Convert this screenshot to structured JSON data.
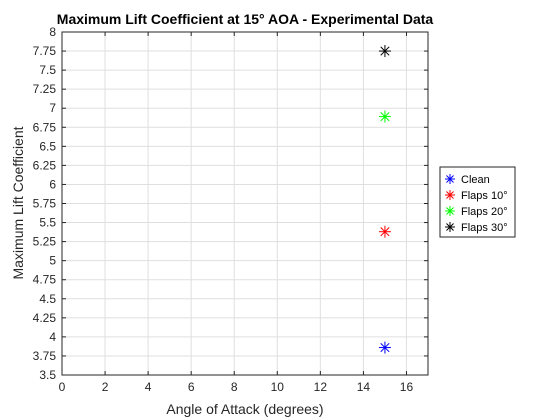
{
  "chart_data": {
    "type": "scatter",
    "title": "Maximum Lift Coefficient at 15° AOA - Experimental Data",
    "xlabel": "Angle of Attack (degrees)",
    "ylabel": "Maximum Lift Coefficient",
    "xlim": [
      0,
      17
    ],
    "ylim": [
      3.5,
      8
    ],
    "xticks": [
      0,
      2,
      4,
      6,
      8,
      10,
      12,
      14,
      16
    ],
    "yticks": [
      3.5,
      3.75,
      4,
      4.25,
      4.5,
      4.75,
      5,
      5.25,
      5.5,
      5.75,
      6,
      6.25,
      6.5,
      6.75,
      7,
      7.25,
      7.5,
      7.75,
      8
    ],
    "grid": true,
    "legend_position": "outside-right",
    "marker": "asterisk",
    "series": [
      {
        "name": "Clean",
        "color": "#0000ff",
        "x": [
          15
        ],
        "y": [
          3.86
        ]
      },
      {
        "name": "Flaps 10°",
        "color": "#ff0000",
        "x": [
          15
        ],
        "y": [
          5.38
        ]
      },
      {
        "name": "Flaps 20°",
        "color": "#00ff00",
        "x": [
          15
        ],
        "y": [
          6.89
        ]
      },
      {
        "name": "Flaps 30°",
        "color": "#000000",
        "x": [
          15
        ],
        "y": [
          7.75
        ]
      }
    ]
  }
}
